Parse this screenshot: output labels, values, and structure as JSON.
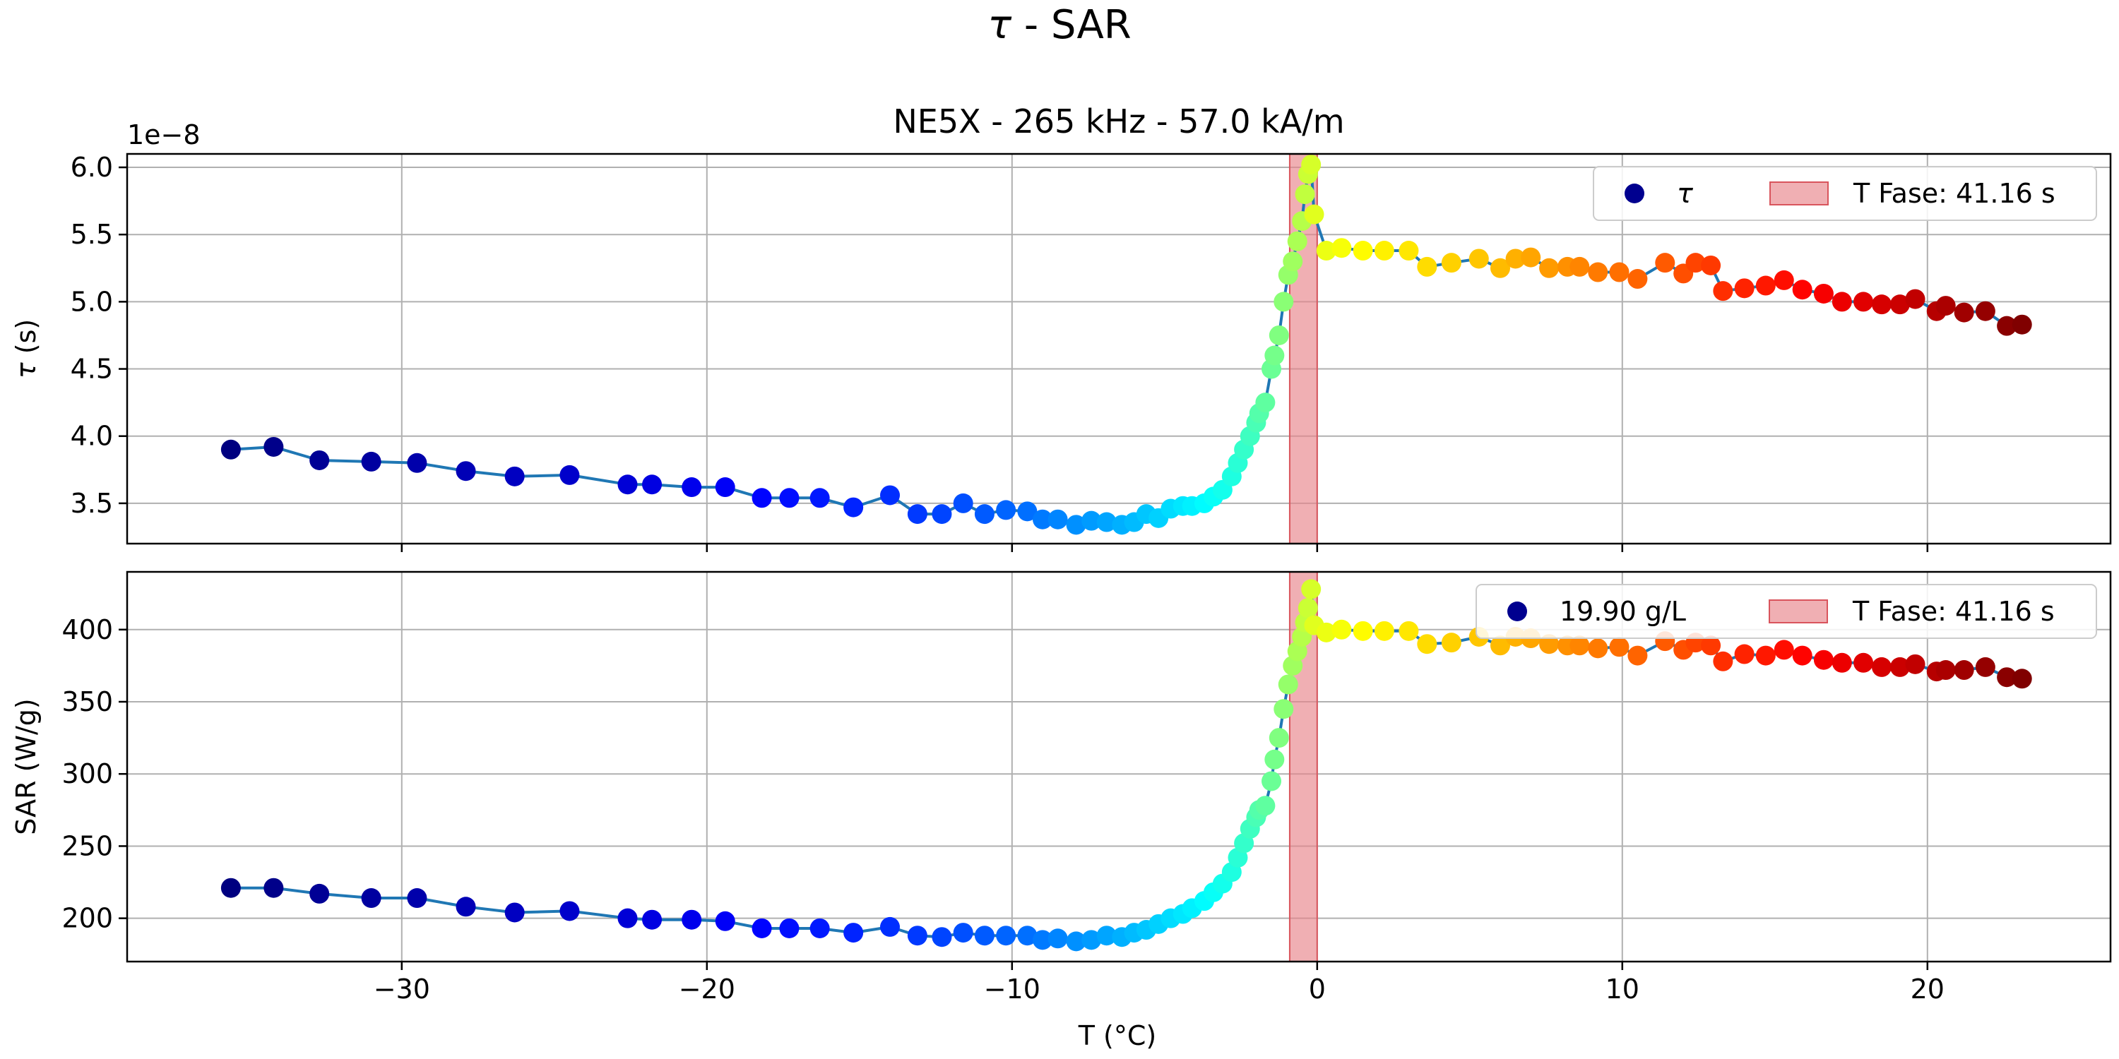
{
  "chart_data": {
    "type": "scatter",
    "suptitle_prefix": "τ",
    "suptitle_rest": " - SAR",
    "xlabel": "T (°C)",
    "xlim": [
      -39,
      26
    ],
    "xticks": [
      -30,
      -20,
      -10,
      0,
      10,
      20
    ],
    "xtick_labels": [
      "−30",
      "−20",
      "−10",
      "0",
      "10",
      "20"
    ],
    "phase_band": [
      -0.9,
      0.0
    ],
    "T": [
      -35.6,
      -34.2,
      -32.7,
      -31.0,
      -29.5,
      -27.9,
      -26.3,
      -24.5,
      -22.6,
      -21.8,
      -20.5,
      -19.4,
      -18.2,
      -17.3,
      -16.3,
      -15.2,
      -14.0,
      -13.1,
      -12.3,
      -11.6,
      -10.9,
      -10.2,
      -9.5,
      -9.0,
      -8.5,
      -7.9,
      -7.4,
      -6.9,
      -6.4,
      -6.0,
      -5.6,
      -5.2,
      -4.8,
      -4.4,
      -4.1,
      -3.7,
      -3.4,
      -3.1,
      -2.8,
      -2.6,
      -2.4,
      -2.2,
      -2.0,
      -1.9,
      -1.7,
      -1.5,
      -1.4,
      -1.25,
      -1.1,
      -0.95,
      -0.8,
      -0.65,
      -0.5,
      -0.4,
      -0.3,
      -0.2,
      -0.1,
      0.3,
      0.8,
      1.5,
      2.2,
      3.0,
      3.6,
      4.4,
      5.3,
      6.0,
      6.5,
      7.0,
      7.6,
      8.2,
      8.6,
      9.2,
      9.9,
      10.5,
      11.4,
      12.0,
      12.4,
      12.9,
      13.3,
      14.0,
      14.7,
      15.3,
      15.9,
      16.6,
      17.2,
      17.9,
      18.5,
      19.1,
      19.6,
      20.3,
      20.6,
      21.2,
      21.9,
      22.6,
      23.1
    ],
    "tau": [
      3.9,
      3.92,
      3.82,
      3.81,
      3.8,
      3.74,
      3.7,
      3.71,
      3.64,
      3.64,
      3.62,
      3.62,
      3.54,
      3.54,
      3.54,
      3.47,
      3.56,
      3.42,
      3.42,
      3.5,
      3.42,
      3.45,
      3.44,
      3.38,
      3.38,
      3.34,
      3.37,
      3.36,
      3.34,
      3.36,
      3.42,
      3.39,
      3.46,
      3.48,
      3.48,
      3.5,
      3.55,
      3.6,
      3.7,
      3.8,
      3.9,
      4.0,
      4.1,
      4.17,
      4.25,
      4.5,
      4.6,
      4.75,
      5.0,
      5.2,
      5.3,
      5.45,
      5.6,
      5.8,
      5.95,
      6.02,
      5.65,
      5.38,
      5.4,
      5.38,
      5.38,
      5.38,
      5.26,
      5.29,
      5.32,
      5.25,
      5.32,
      5.33,
      5.25,
      5.26,
      5.26,
      5.22,
      5.22,
      5.17,
      5.29,
      5.21,
      5.29,
      5.27,
      5.08,
      5.1,
      5.12,
      5.16,
      5.09,
      5.06,
      5.0,
      5.0,
      4.98,
      4.98,
      5.02,
      4.93,
      4.97,
      4.92,
      4.93,
      4.82,
      4.83
    ],
    "sar": [
      221,
      221,
      217,
      214,
      214,
      208,
      204,
      205,
      200,
      199,
      199,
      198,
      193,
      193,
      193,
      190,
      194,
      188,
      187,
      190,
      188,
      188,
      188,
      185,
      186,
      184,
      185,
      188,
      187,
      190,
      192,
      196,
      200,
      203,
      207,
      212,
      218,
      224,
      232,
      242,
      252,
      262,
      270,
      275,
      278,
      295,
      310,
      325,
      345,
      362,
      375,
      385,
      395,
      405,
      415,
      428,
      403,
      398,
      400,
      399,
      399,
      399,
      390,
      391,
      395,
      389,
      395,
      394,
      390,
      389,
      389,
      387,
      388,
      382,
      392,
      386,
      391,
      389,
      378,
      383,
      382,
      386,
      382,
      379,
      377,
      377,
      374,
      374,
      376,
      371,
      372,
      372,
      374,
      367,
      366
    ],
    "panels": [
      {
        "key": "tau",
        "title": "NE5X - 265 kHz - 57.0 kA/m",
        "ylabel_symbol": "τ",
        "ylabel_rest": " (s)",
        "offset_label": "1e−8",
        "ylim": [
          3.2,
          6.1
        ],
        "yticks": [
          3.5,
          4.0,
          4.5,
          5.0,
          5.5,
          6.0
        ],
        "ytick_labels": [
          "3.5",
          "4.0",
          "4.5",
          "5.0",
          "5.5",
          "6.0"
        ],
        "legend": [
          "τ",
          "T Fase: 41.16 s"
        ]
      },
      {
        "key": "sar",
        "title": "",
        "ylabel_symbol": "",
        "ylabel_rest": "SAR (W/g)",
        "offset_label": "",
        "ylim": [
          170,
          440
        ],
        "yticks": [
          200,
          250,
          300,
          350,
          400
        ],
        "ytick_labels": [
          "200",
          "250",
          "300",
          "350",
          "400"
        ],
        "legend": [
          "19.90 g/L",
          "T Fase: 41.16 s"
        ]
      }
    ],
    "grid": true,
    "legend_placement": "top-right",
    "colormap": "jet",
    "colors": {
      "line": "#1f77b4",
      "band_fill": "#e8848a",
      "band_edge": "#d9545c",
      "legend_marker": "#00008f"
    }
  }
}
